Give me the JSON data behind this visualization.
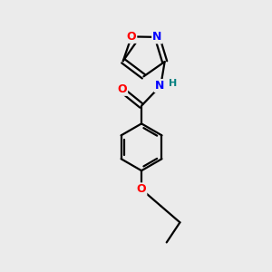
{
  "background_color": "#ebebeb",
  "bond_color": "#000000",
  "atom_colors": {
    "O": "#ff0000",
    "N": "#0000ff",
    "H": "#008080"
  },
  "figsize": [
    3.0,
    3.0
  ],
  "dpi": 100,
  "lw": 1.6
}
